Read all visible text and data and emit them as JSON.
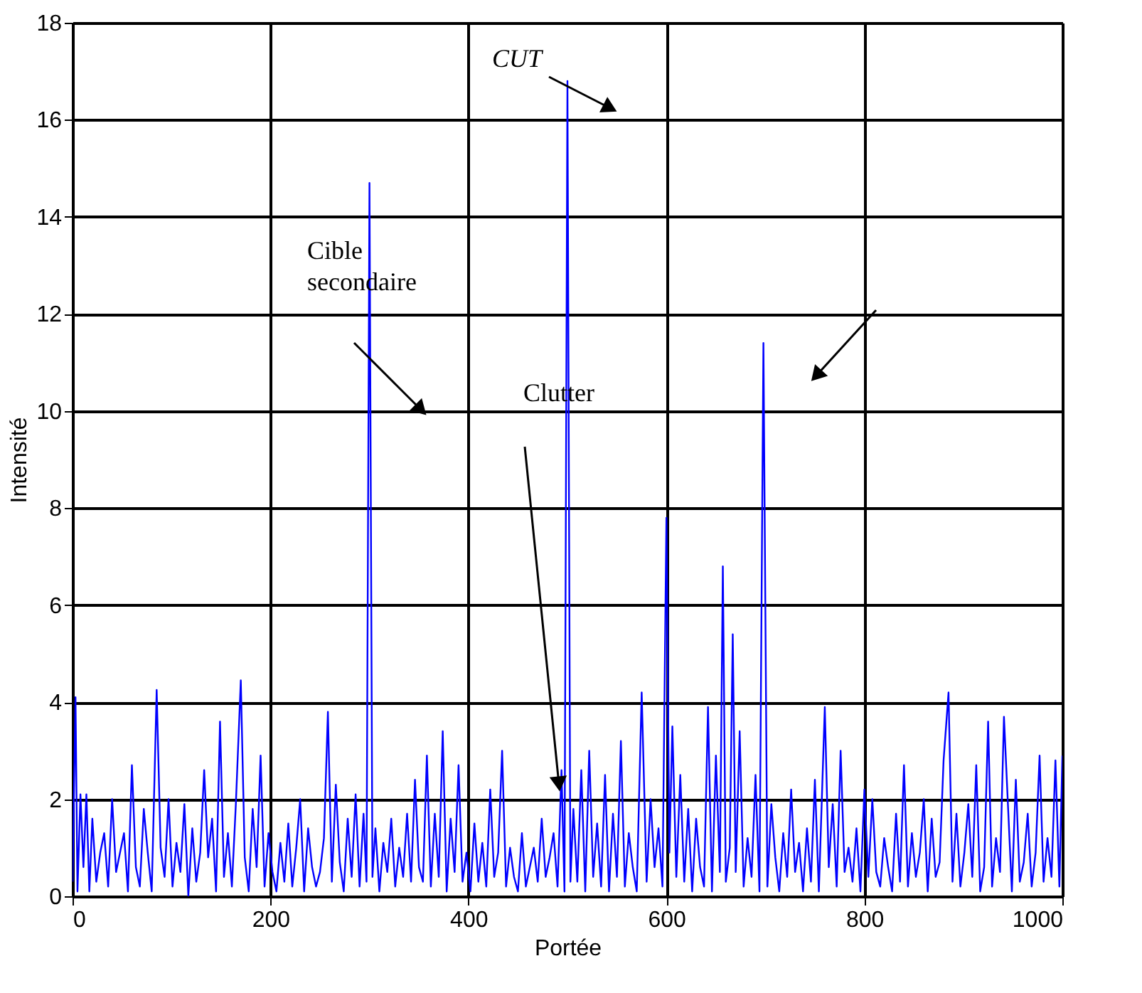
{
  "chart_data": {
    "type": "line",
    "xlabel": "Portée",
    "ylabel": "Intensité",
    "xlim": [
      0,
      1000
    ],
    "ylim": [
      0,
      18
    ],
    "xticks": [
      0,
      200,
      400,
      600,
      800,
      1000
    ],
    "yticks": [
      0,
      2,
      4,
      6,
      8,
      10,
      12,
      14,
      16,
      18
    ],
    "grid": true,
    "annotations": [
      "CUT",
      "Cible secondaire",
      "Clutter"
    ],
    "series": [
      {
        "color": "#0000ff",
        "x": [
          0,
          3,
          5,
          8,
          11,
          14,
          17,
          20,
          24,
          28,
          32,
          36,
          40,
          44,
          48,
          52,
          56,
          60,
          64,
          68,
          72,
          76,
          80,
          85,
          89,
          93,
          97,
          101,
          105,
          109,
          113,
          117,
          121,
          125,
          129,
          133,
          137,
          141,
          145,
          149,
          153,
          157,
          161,
          165,
          170,
          174,
          178,
          182,
          186,
          190,
          194,
          198,
          202,
          206,
          210,
          214,
          218,
          222,
          226,
          230,
          234,
          238,
          242,
          246,
          250,
          254,
          258,
          262,
          266,
          270,
          274,
          278,
          282,
          286,
          290,
          294,
          297,
          300,
          303,
          306,
          310,
          314,
          318,
          322,
          326,
          330,
          334,
          338,
          342,
          346,
          350,
          354,
          358,
          362,
          366,
          370,
          374,
          378,
          382,
          386,
          390,
          394,
          398,
          402,
          406,
          410,
          414,
          418,
          422,
          426,
          430,
          434,
          438,
          442,
          446,
          450,
          454,
          458,
          462,
          466,
          470,
          474,
          478,
          482,
          486,
          490,
          494,
          497,
          500,
          503,
          506,
          510,
          514,
          518,
          522,
          526,
          530,
          534,
          538,
          542,
          546,
          550,
          554,
          558,
          562,
          566,
          570,
          575,
          580,
          584,
          588,
          592,
          596,
          600,
          603,
          606,
          610,
          614,
          618,
          622,
          626,
          630,
          634,
          638,
          642,
          646,
          650,
          654,
          657,
          660,
          664,
          667,
          670,
          674,
          678,
          682,
          686,
          690,
          694,
          698,
          702,
          706,
          710,
          714,
          718,
          722,
          726,
          730,
          734,
          738,
          742,
          746,
          750,
          754,
          760,
          764,
          768,
          772,
          776,
          780,
          784,
          788,
          792,
          796,
          800,
          804,
          808,
          812,
          816,
          820,
          824,
          828,
          832,
          836,
          840,
          844,
          848,
          852,
          856,
          860,
          864,
          868,
          872,
          876,
          880,
          885,
          889,
          893,
          897,
          901,
          905,
          909,
          913,
          917,
          921,
          925,
          929,
          933,
          937,
          941,
          945,
          949,
          953,
          957,
          961,
          965,
          969,
          973,
          977,
          981,
          985,
          989,
          993,
          997,
          1000
        ],
        "values": [
          0.3,
          4.1,
          0.1,
          2.1,
          0.6,
          2.1,
          0.1,
          1.6,
          0.3,
          0.9,
          1.3,
          0.2,
          2.0,
          0.5,
          0.9,
          1.3,
          0.1,
          2.7,
          0.6,
          0.2,
          1.8,
          0.9,
          0.1,
          4.25,
          1.0,
          0.4,
          2.0,
          0.2,
          1.1,
          0.5,
          1.9,
          0.0,
          1.4,
          0.3,
          0.9,
          2.6,
          0.8,
          1.6,
          0.1,
          3.6,
          0.4,
          1.3,
          0.2,
          1.9,
          4.45,
          0.8,
          0.1,
          1.8,
          0.6,
          2.9,
          0.2,
          1.3,
          0.5,
          0.1,
          1.1,
          0.3,
          1.5,
          0.2,
          1.0,
          2.0,
          0.1,
          1.4,
          0.6,
          0.2,
          0.5,
          1.2,
          3.8,
          0.3,
          2.3,
          0.7,
          0.1,
          1.6,
          0.4,
          2.1,
          0.2,
          1.7,
          0.3,
          14.7,
          0.4,
          1.4,
          0.1,
          1.1,
          0.5,
          1.6,
          0.2,
          1.0,
          0.4,
          1.7,
          0.3,
          2.4,
          0.6,
          0.3,
          2.9,
          0.2,
          1.7,
          0.4,
          3.4,
          0.1,
          1.6,
          0.5,
          2.7,
          0.3,
          0.9,
          0.1,
          1.5,
          0.3,
          1.1,
          0.2,
          2.2,
          0.4,
          0.9,
          3.0,
          0.2,
          1.0,
          0.4,
          0.1,
          1.3,
          0.2,
          0.6,
          1.0,
          0.3,
          1.6,
          0.4,
          0.8,
          1.3,
          0.2,
          2.6,
          0.1,
          16.8,
          0.3,
          1.8,
          0.3,
          2.6,
          0.1,
          3.0,
          0.4,
          1.5,
          0.2,
          2.5,
          0.1,
          1.7,
          0.4,
          3.2,
          0.2,
          1.3,
          0.6,
          0.1,
          4.2,
          0.3,
          2.0,
          0.6,
          1.4,
          0.2,
          7.8,
          0.9,
          3.5,
          0.4,
          2.5,
          0.3,
          1.8,
          0.1,
          1.6,
          0.6,
          0.2,
          3.9,
          0.1,
          2.9,
          0.5,
          6.8,
          0.3,
          1.0,
          5.4,
          0.5,
          3.4,
          0.2,
          1.2,
          0.4,
          2.5,
          0.1,
          11.4,
          0.2,
          1.9,
          0.8,
          0.1,
          1.3,
          0.4,
          2.2,
          0.5,
          1.1,
          0.1,
          1.4,
          0.3,
          2.4,
          0.1,
          3.9,
          0.6,
          1.9,
          0.2,
          3.0,
          0.5,
          1.0,
          0.3,
          1.4,
          0.1,
          2.2,
          0.4,
          2.0,
          0.5,
          0.2,
          1.2,
          0.6,
          0.1,
          1.7,
          0.3,
          2.7,
          0.2,
          1.3,
          0.4,
          0.9,
          2.0,
          0.1,
          1.6,
          0.4,
          0.7,
          2.8,
          4.2,
          0.3,
          1.7,
          0.2,
          0.9,
          1.9,
          0.4,
          2.7,
          0.1,
          0.6,
          3.6,
          0.2,
          1.2,
          0.5,
          3.7,
          1.9,
          0.1,
          2.4,
          0.3,
          0.7,
          1.7,
          0.2,
          0.9,
          2.9,
          0.3,
          1.2,
          0.4,
          2.8,
          0.2,
          2.9
        ]
      }
    ]
  }
}
